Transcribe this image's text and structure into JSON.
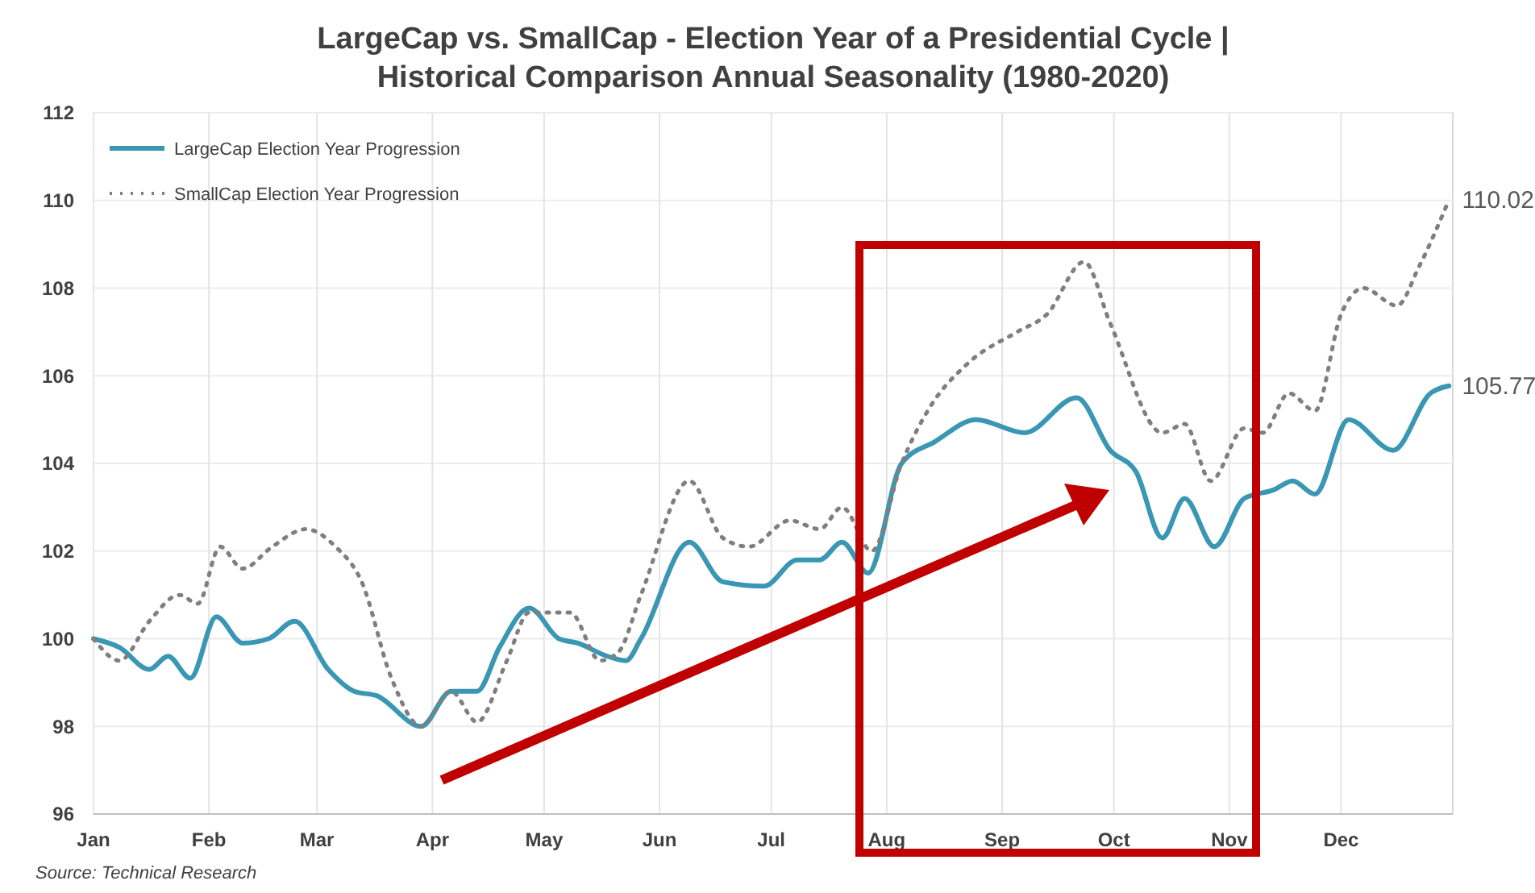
{
  "chart_data": {
    "type": "line",
    "title": "LargeCap vs. SmallCap - Election Year of a Presidential Cycle |\nHistorical Comparison Annual Seasonality (1980-2020)",
    "xlim": [
      "--01-01",
      "--12-31"
    ],
    "xticks": [
      {
        "value": "--01-01",
        "label": "Jan"
      },
      {
        "value": "--02-01",
        "label": "Feb"
      },
      {
        "value": "--03-01",
        "label": "Mar"
      },
      {
        "value": "--04-01",
        "label": "Apr"
      },
      {
        "value": "--05-01",
        "label": "May"
      },
      {
        "value": "--06-01",
        "label": "Jun"
      },
      {
        "value": "--07-01",
        "label": "Jul"
      },
      {
        "value": "--08-01",
        "label": "Aug"
      },
      {
        "value": "--09-01",
        "label": "Sep"
      },
      {
        "value": "--10-01",
        "label": "Oct"
      },
      {
        "value": "--11-01",
        "label": "Nov"
      },
      {
        "value": "--12-01",
        "label": "Dec"
      }
    ],
    "ylim": [
      96,
      112
    ],
    "yticks": [
      96,
      98,
      100,
      102,
      104,
      106,
      108,
      110,
      112
    ],
    "grid": true,
    "legend": "top left",
    "marker": "none",
    "series": [
      {
        "name": "LargeCap Election Year Progression",
        "color": "#3a97b4",
        "line_style": "solid",
        "x": [
          "--01-01",
          "--01-08",
          "--01-16",
          "--01-21",
          "--01-27",
          "--02-03",
          "--02-10",
          "--02-17",
          "--02-24",
          "--03-04",
          "--03-11",
          "--03-17",
          "--03-29",
          "--04-06",
          "--04-13",
          "--04-19",
          "--04-27",
          "--05-05",
          "--05-10",
          "--05-18",
          "--05-23",
          "--05-27",
          "--06-09",
          "--06-18",
          "--06-29",
          "--07-08",
          "--07-14",
          "--07-20",
          "--07-27",
          "--08-05",
          "--08-14",
          "--08-25",
          "--09-07",
          "--09-21",
          "--09-30",
          "--10-07",
          "--10-14",
          "--10-20",
          "--10-28",
          "--11-05",
          "--11-13",
          "--11-18",
          "--11-24",
          "--12-03",
          "--12-15",
          "--12-25",
          "--12-30"
        ],
        "values": [
          100.0,
          99.8,
          99.3,
          99.6,
          99.1,
          100.5,
          99.9,
          100.0,
          100.4,
          99.3,
          98.8,
          98.7,
          98.0,
          98.8,
          98.8,
          99.8,
          100.7,
          100.0,
          99.9,
          99.6,
          99.5,
          100.0,
          102.2,
          101.3,
          101.2,
          101.8,
          101.8,
          102.2,
          101.5,
          104.0,
          104.5,
          105.0,
          104.7,
          105.5,
          104.3,
          103.8,
          102.3,
          103.2,
          102.1,
          103.2,
          103.4,
          103.6,
          103.3,
          105.0,
          104.3,
          105.6,
          105.77
        ]
      },
      {
        "name": "SmallCap Election Year Progression",
        "color": "#7f7f7f",
        "line_style": "dotted",
        "x": [
          "--01-01",
          "--01-08",
          "--01-16",
          "--01-24",
          "--01-29",
          "--02-04",
          "--02-10",
          "--02-18",
          "--02-27",
          "--03-06",
          "--03-13",
          "--03-21",
          "--03-29",
          "--04-06",
          "--04-13",
          "--04-21",
          "--04-27",
          "--05-08",
          "--05-16",
          "--05-21",
          "--05-27",
          "--06-09",
          "--06-18",
          "--06-25",
          "--07-06",
          "--07-14",
          "--07-20",
          "--07-28",
          "--08-05",
          "--08-12",
          "--08-23",
          "--09-05",
          "--09-13",
          "--09-23",
          "--09-30",
          "--10-14",
          "--10-20",
          "--10-27",
          "--11-05",
          "--11-10",
          "--11-17",
          "--11-24",
          "--12-01",
          "--12-07",
          "--12-16",
          "--12-22",
          "--12-30"
        ],
        "values": [
          100.0,
          99.5,
          100.4,
          101.0,
          100.8,
          102.1,
          101.6,
          102.1,
          102.5,
          102.1,
          101.3,
          99.1,
          98.0,
          98.8,
          98.1,
          99.5,
          100.6,
          100.6,
          99.5,
          99.7,
          101.0,
          103.6,
          102.3,
          102.1,
          102.7,
          102.5,
          103.0,
          102.0,
          104.0,
          105.2,
          106.3,
          107.0,
          107.4,
          108.6,
          107.2,
          104.7,
          104.9,
          103.6,
          104.8,
          104.7,
          105.6,
          105.2,
          107.4,
          108.0,
          107.6,
          108.5,
          110.02
        ]
      }
    ],
    "annotations": [
      {
        "text": "110.02",
        "x": "--12-30",
        "y": 110.02
      },
      {
        "text": "105.77",
        "x": "--12-30",
        "y": 105.77
      },
      "Source: Technical Research"
    ]
  }
}
